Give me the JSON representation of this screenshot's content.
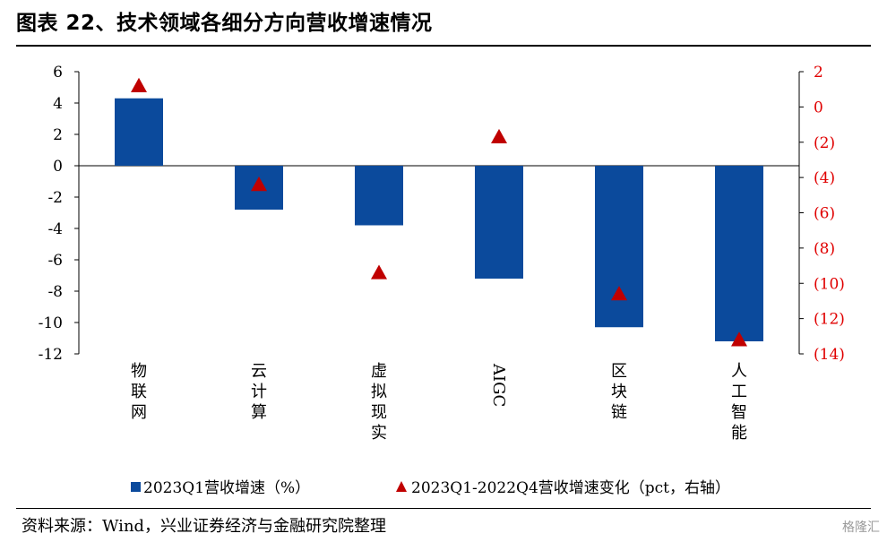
{
  "header": {
    "title": "图表 22、技术领域各细分方向营收增速情况"
  },
  "footer": {
    "source": "资料来源：Wind，兴业证券经济与金融研究院整理",
    "watermark": "格隆汇"
  },
  "colors": {
    "bar": "#0b4a9c",
    "marker": "#c00000",
    "right_axis_text": "#e00000"
  },
  "chart_data": {
    "type": "bar",
    "title": "",
    "categories": [
      "物联网",
      "云计算",
      "虚拟现实",
      "AIGC",
      "区块链",
      "人工智能"
    ],
    "series": [
      {
        "name": "2023Q1营收增速（%）",
        "type": "bar",
        "axis": "left",
        "values": [
          4.3,
          -2.8,
          -3.8,
          -7.2,
          -10.3,
          -11.2
        ]
      },
      {
        "name": "2023Q1-2022Q4营收增速变化（pct，右轴）",
        "type": "scatter",
        "marker": "triangle",
        "axis": "right",
        "values": [
          1.2,
          -4.4,
          -9.4,
          -1.7,
          -10.6,
          -13.2
        ]
      }
    ],
    "y_left": {
      "min": -12,
      "max": 6,
      "ticks": [
        6,
        4,
        2,
        0,
        -2,
        -4,
        -6,
        -8,
        -10,
        -12
      ],
      "tick_labels": [
        "6",
        "4",
        "2",
        "0",
        "-2",
        "-4",
        "-6",
        "-8",
        "-10",
        "-12"
      ]
    },
    "y_right": {
      "min": -14,
      "max": 2,
      "ticks": [
        2,
        0,
        -2,
        -4,
        -6,
        -8,
        -10,
        -12,
        -14
      ],
      "tick_labels": [
        "2",
        "0",
        "(2)",
        "(4)",
        "(6)",
        "(8)",
        "(10)",
        "(12)",
        "(14)"
      ]
    },
    "grid": false,
    "legend_position": "bottom"
  }
}
